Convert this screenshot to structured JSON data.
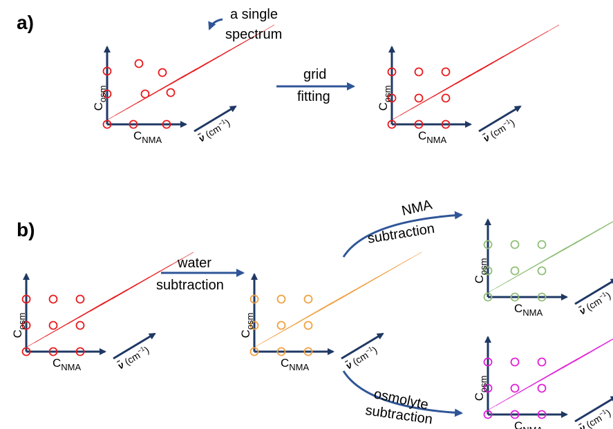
{
  "panels": {
    "a": {
      "label": "a)"
    },
    "b": {
      "label": "b)"
    }
  },
  "annotations": {
    "single_spectrum": [
      "a single",
      "spectrum"
    ],
    "grid_fitting": [
      "grid",
      "fitting"
    ],
    "water_subtraction": [
      "water",
      "subtraction"
    ],
    "nma_subtraction": [
      "NMA",
      "subtraction"
    ],
    "osmolyte_subtraction": [
      "osmolyte",
      "subtraction"
    ]
  },
  "axis_labels": {
    "y_main": "C",
    "y_sub": "osm",
    "x_main": "C",
    "x_sub": "NMA",
    "nu_symbol": "ν̃",
    "nu_unit": "(cm",
    "nu_exp": "−1",
    "nu_close": ")"
  },
  "colors": {
    "axis": "#1f3864",
    "arrow": "#2f5597",
    "raw": "#e8191c",
    "water_sub": "#f0a040",
    "nma_sub": "#8fbf78",
    "osm_sub": "#e020d8"
  },
  "plots": [
    {
      "id": "a-raw",
      "color_key": "raw",
      "layout": "scattered"
    },
    {
      "id": "a-grid",
      "color_key": "raw",
      "layout": "grid"
    },
    {
      "id": "b-raw",
      "color_key": "raw",
      "layout": "grid"
    },
    {
      "id": "b-water",
      "color_key": "water_sub",
      "layout": "grid"
    },
    {
      "id": "b-nma",
      "color_key": "nma_sub",
      "layout": "grid"
    },
    {
      "id": "b-osm",
      "color_key": "osm_sub",
      "layout": "grid"
    }
  ]
}
